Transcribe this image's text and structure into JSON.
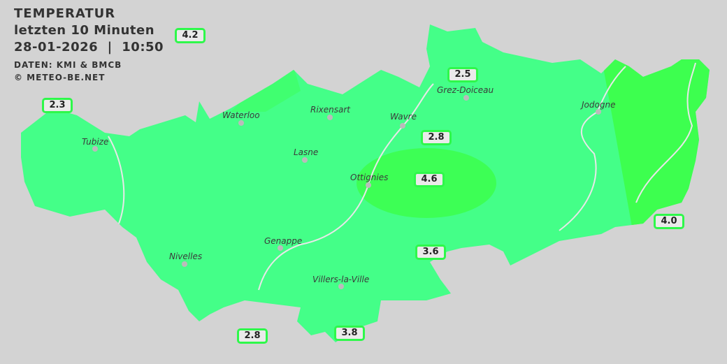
{
  "header": {
    "title": "TEMPERATUR",
    "period": "letzten 10 Minuten",
    "datetime": "28-01-2026  |  10:50",
    "source": "DATEN: KMI & BMCB",
    "copyright": "© METEO-BE.NET"
  },
  "colors": {
    "background": "#d3d3d3",
    "zone_cool": "#44ff88",
    "zone_warm": "#3dff4f",
    "label_border": "#2ef84a"
  },
  "cities": [
    {
      "name": "Waterloo"
    },
    {
      "name": "Rixensart"
    },
    {
      "name": "Wavre"
    },
    {
      "name": "Grez-Doiceau"
    },
    {
      "name": "Jodogne"
    },
    {
      "name": "Tubize"
    },
    {
      "name": "Lasne"
    },
    {
      "name": "Ottignies"
    },
    {
      "name": "Genappe"
    },
    {
      "name": "Nivelles"
    },
    {
      "name": "Villers-la-Ville"
    }
  ],
  "stations": [
    {
      "value": "4.2"
    },
    {
      "value": "2.3"
    },
    {
      "value": "2.5"
    },
    {
      "value": "2.8"
    },
    {
      "value": "4.6"
    },
    {
      "value": "4.0"
    },
    {
      "value": "3.6"
    },
    {
      "value": "2.8"
    },
    {
      "value": "3.8"
    }
  ]
}
